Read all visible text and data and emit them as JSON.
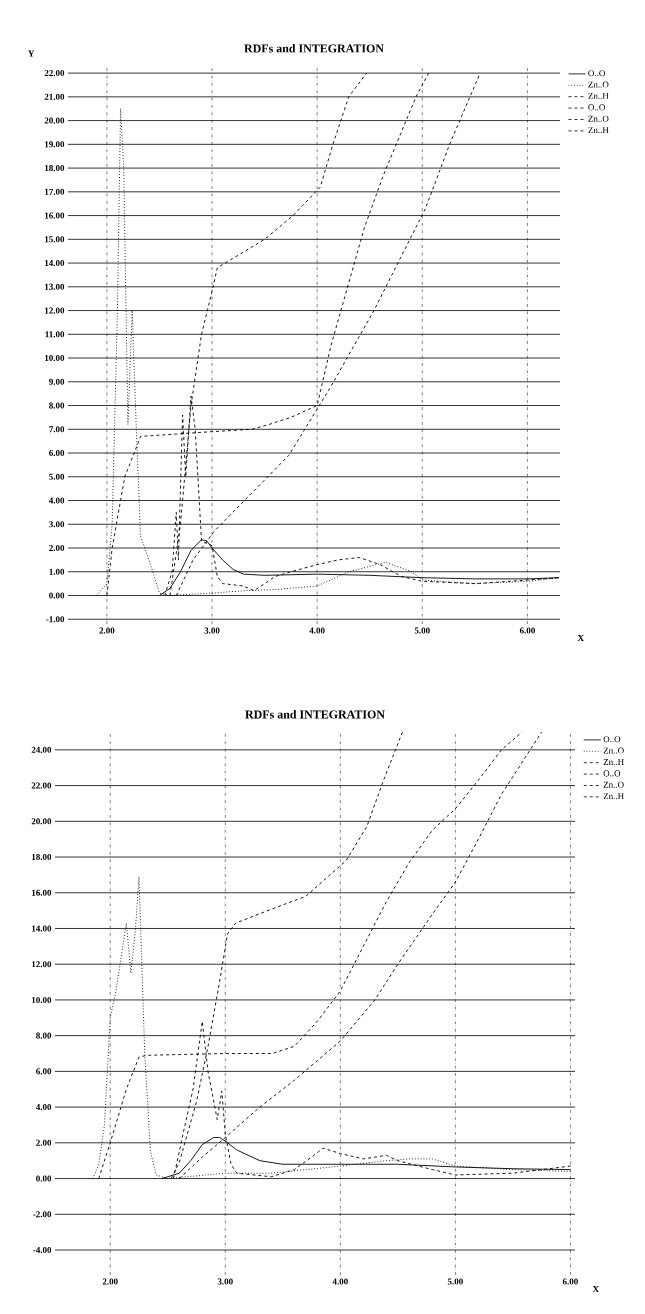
{
  "chart_data": [
    {
      "type": "line",
      "title": "RDFs and INTEGRATION",
      "xlabel": "X",
      "ylabel": "Y",
      "xlim": [
        1.63,
        6.31
      ],
      "ylim": [
        -1.2,
        22.3
      ],
      "xticks": [
        {
          "value": 2,
          "label": "2.00"
        },
        {
          "value": 3,
          "label": "3.00"
        },
        {
          "value": 4,
          "label": "4.00"
        },
        {
          "value": 5,
          "label": "5.00"
        },
        {
          "value": 6,
          "label": "6.00"
        }
      ],
      "yticks": [
        {
          "value": -1,
          "label": "-1.00"
        },
        {
          "value": 0,
          "label": "0.00"
        },
        {
          "value": 1,
          "label": "1.00"
        },
        {
          "value": 2,
          "label": "2.00"
        },
        {
          "value": 3,
          "label": "3.00"
        },
        {
          "value": 4,
          "label": "4.00"
        },
        {
          "value": 5,
          "label": "5.00"
        },
        {
          "value": 6,
          "label": "6.00"
        },
        {
          "value": 7,
          "label": "7.00"
        },
        {
          "value": 8,
          "label": "8.00"
        },
        {
          "value": 9,
          "label": "9.00"
        },
        {
          "value": 10,
          "label": "10.00"
        },
        {
          "value": 11,
          "label": "11.00"
        },
        {
          "value": 12,
          "label": "12.00"
        },
        {
          "value": 13,
          "label": "13.00"
        },
        {
          "value": 14,
          "label": "14.00"
        },
        {
          "value": 15,
          "label": "15.00"
        },
        {
          "value": 16,
          "label": "16.00"
        },
        {
          "value": 17,
          "label": "17.00"
        },
        {
          "value": 18,
          "label": "18.00"
        },
        {
          "value": 19,
          "label": "19.00"
        },
        {
          "value": 20,
          "label": "20.00"
        },
        {
          "value": 21,
          "label": "21.00"
        },
        {
          "value": 22,
          "label": "22.00"
        }
      ],
      "grid": true,
      "legend": "top right",
      "marker": "none",
      "series": [
        {
          "name": "O..O",
          "color": "#000000",
          "line_style": "solid",
          "x": [
            2.5,
            2.6,
            2.7,
            2.8,
            2.9,
            2.95,
            3.0,
            3.1,
            3.2,
            3.3,
            3.5,
            4.0,
            4.5,
            5.0,
            5.5,
            6.0,
            6.3
          ],
          "values": [
            0,
            0.3,
            1,
            1.9,
            2.35,
            2.3,
            2.0,
            1.5,
            1.1,
            0.9,
            0.85,
            0.9,
            0.85,
            0.75,
            0.7,
            0.7,
            0.75
          ]
        },
        {
          "name": "Zn..O",
          "color": "#000000",
          "line_style": "dotted",
          "x": [
            1.9,
            2.0,
            2.05,
            2.1,
            2.13,
            2.16,
            2.2,
            2.24,
            2.28,
            2.32,
            2.4,
            2.5,
            2.6,
            3.0,
            3.3,
            3.6,
            4.0,
            4.3,
            4.65,
            4.9,
            5.0,
            5.5,
            6.0,
            6.3
          ],
          "values": [
            0,
            0.5,
            3,
            12,
            20.5,
            18,
            7.2,
            12,
            7,
            2.5,
            1.5,
            0.1,
            0,
            0.1,
            0.2,
            0.25,
            0.4,
            1.0,
            1.4,
            1.0,
            0.65,
            0.5,
            0.6,
            0.75
          ]
        },
        {
          "name": "Zn..H",
          "color": "#000000",
          "line_style": "dashed",
          "x": [
            2.55,
            2.62,
            2.66,
            2.68,
            2.72,
            2.75,
            2.8,
            2.84,
            2.9,
            3.0,
            3.05,
            3.1,
            3.3,
            3.4,
            3.6,
            3.75,
            4.0,
            4.2,
            4.4,
            4.6,
            4.8,
            5.0,
            5.5,
            6.0,
            6.3
          ],
          "values": [
            0,
            1,
            3.5,
            1.5,
            7.6,
            5,
            8.4,
            7,
            2.3,
            2.1,
            0.8,
            0.5,
            0.4,
            0.2,
            0.8,
            1.0,
            1.3,
            1.5,
            1.6,
            1.3,
            0.8,
            0.6,
            0.5,
            0.65,
            0.75
          ]
        },
        {
          "name": "O..O",
          "color": "#000000",
          "line_style": "dashed",
          "x": [
            2.66,
            2.82,
            3.02,
            3.33,
            3.73,
            4.13,
            4.54,
            5.03,
            5.26,
            5.55
          ],
          "values": [
            0,
            1.5,
            2.7,
            4.1,
            5.9,
            8.8,
            12,
            16.3,
            19,
            22
          ]
        },
        {
          "name": "Zn..O",
          "color": "#000000",
          "line_style": "dashed",
          "x": [
            2.0,
            2.05,
            2.17,
            2.26,
            2.32,
            3.0,
            3.38,
            3.54,
            3.75,
            4.0,
            4.13,
            4.29,
            4.45,
            4.63,
            4.94,
            5.06
          ],
          "values": [
            0,
            2,
            5,
            6,
            6.7,
            6.9,
            7.0,
            7.2,
            7.5,
            8,
            10.5,
            13,
            15.5,
            17.7,
            21,
            22
          ]
        },
        {
          "name": "Zn..H",
          "color": "#000000",
          "line_style": "dashed",
          "x": [
            2.6,
            2.7,
            2.8,
            2.9,
            3.0,
            3.05,
            3.2,
            3.5,
            3.77,
            4.03,
            4.15,
            4.3,
            4.47
          ],
          "values": [
            0,
            3,
            8,
            11,
            12.8,
            13.8,
            14.2,
            15,
            16,
            17.2,
            19,
            21,
            22
          ]
        }
      ]
    },
    {
      "type": "line",
      "title": "RDFs and INTEGRATION",
      "xlabel": "X",
      "xlim": [
        1.52,
        6.04
      ],
      "ylim": [
        -5.4,
        25
      ],
      "xticks": [
        {
          "value": 2,
          "label": "2.00"
        },
        {
          "value": 3,
          "label": "3.00"
        },
        {
          "value": 4,
          "label": "4.00"
        },
        {
          "value": 5,
          "label": "5.00"
        },
        {
          "value": 6,
          "label": "6.00"
        }
      ],
      "yticks": [
        {
          "value": -4,
          "label": "-4.00"
        },
        {
          "value": -2,
          "label": "-2.00"
        },
        {
          "value": 0,
          "label": "0.00"
        },
        {
          "value": 2,
          "label": "2.00"
        },
        {
          "value": 4,
          "label": "4.00"
        },
        {
          "value": 6,
          "label": "6.00"
        },
        {
          "value": 8,
          "label": "8.00"
        },
        {
          "value": 10,
          "label": "10.00"
        },
        {
          "value": 12,
          "label": "12.00"
        },
        {
          "value": 14,
          "label": "14.00"
        },
        {
          "value": 16,
          "label": "16.00"
        },
        {
          "value": 18,
          "label": "18.00"
        },
        {
          "value": 20,
          "label": "20.00"
        },
        {
          "value": 22,
          "label": "22.00"
        },
        {
          "value": 24,
          "label": "24.00"
        }
      ],
      "grid": true,
      "legend": "top right",
      "marker": "none",
      "series": [
        {
          "name": "O..O",
          "color": "#000000",
          "line_style": "solid",
          "x": [
            2.45,
            2.6,
            2.7,
            2.8,
            2.9,
            2.95,
            3.0,
            3.1,
            3.3,
            3.5,
            4.0,
            4.5,
            5.0,
            5.5,
            6.0
          ],
          "values": [
            0,
            0.3,
            1.0,
            1.9,
            2.3,
            2.3,
            2.1,
            1.6,
            1.0,
            0.8,
            0.8,
            0.8,
            0.65,
            0.55,
            0.5
          ]
        },
        {
          "name": "Zn..O",
          "color": "#000000",
          "line_style": "dotted",
          "x": [
            1.85,
            1.9,
            1.95,
            2.0,
            2.05,
            2.14,
            2.18,
            2.22,
            2.25,
            2.3,
            2.35,
            2.4,
            2.5,
            3.0,
            3.4,
            3.7,
            4.0,
            4.4,
            4.6,
            4.8,
            5.0,
            5.5,
            6.0
          ],
          "values": [
            0,
            0.8,
            3,
            9,
            10.5,
            14.3,
            11.5,
            14,
            16.9,
            7,
            1.5,
            0.2,
            0,
            0.3,
            0.3,
            0.5,
            0.7,
            1.0,
            1.1,
            1.1,
            0.7,
            0.5,
            0.4
          ]
        },
        {
          "name": "Zn..H",
          "color": "#000000",
          "line_style": "dashed",
          "x": [
            2.55,
            2.65,
            2.72,
            2.8,
            2.85,
            2.93,
            2.97,
            3.0,
            3.05,
            3.1,
            3.4,
            3.6,
            3.75,
            3.85,
            4.0,
            4.2,
            4.4,
            4.5,
            4.8,
            5.0,
            5.5,
            6.0
          ],
          "values": [
            0,
            3,
            5,
            8.8,
            6,
            3.3,
            4.9,
            2.5,
            0.8,
            0.3,
            0.1,
            0.5,
            1.2,
            1.7,
            1.4,
            1.1,
            1.3,
            1.0,
            0.5,
            0.2,
            0.3,
            0.7
          ]
        },
        {
          "name": "O..O",
          "color": "#000000",
          "line_style": "dashed",
          "x": [
            2.6,
            2.8,
            3.0,
            3.3,
            3.6,
            4.0,
            4.3,
            4.5,
            4.8,
            5.0,
            5.2,
            5.4,
            5.6,
            5.75
          ],
          "values": [
            0,
            1.2,
            2.3,
            4,
            5.5,
            7.7,
            10,
            12,
            14.8,
            16.6,
            19,
            21.5,
            23.5,
            25
          ]
        },
        {
          "name": "Zn..O",
          "color": "#000000",
          "line_style": "dashed",
          "x": [
            1.9,
            2.0,
            2.14,
            2.25,
            2.32,
            3.0,
            3.41,
            3.6,
            3.8,
            4.0,
            4.2,
            4.4,
            4.6,
            4.8,
            5.0,
            5.2,
            5.4,
            5.58
          ],
          "values": [
            0,
            2,
            5,
            6.8,
            6.9,
            7.0,
            7.0,
            7.4,
            8.8,
            10.5,
            13,
            15.5,
            17.7,
            19.5,
            20.7,
            22.3,
            24,
            25
          ]
        },
        {
          "name": "Zn..H",
          "color": "#000000",
          "line_style": "dashed",
          "x": [
            2.53,
            2.6,
            2.75,
            2.85,
            2.95,
            3.02,
            3.09,
            3.41,
            3.7,
            4.05,
            4.23,
            4.37,
            4.54
          ],
          "values": [
            0,
            0.9,
            4.3,
            7.4,
            11,
            13.7,
            14.3,
            15.1,
            15.8,
            17.8,
            19.7,
            22.2,
            25
          ]
        }
      ]
    }
  ]
}
